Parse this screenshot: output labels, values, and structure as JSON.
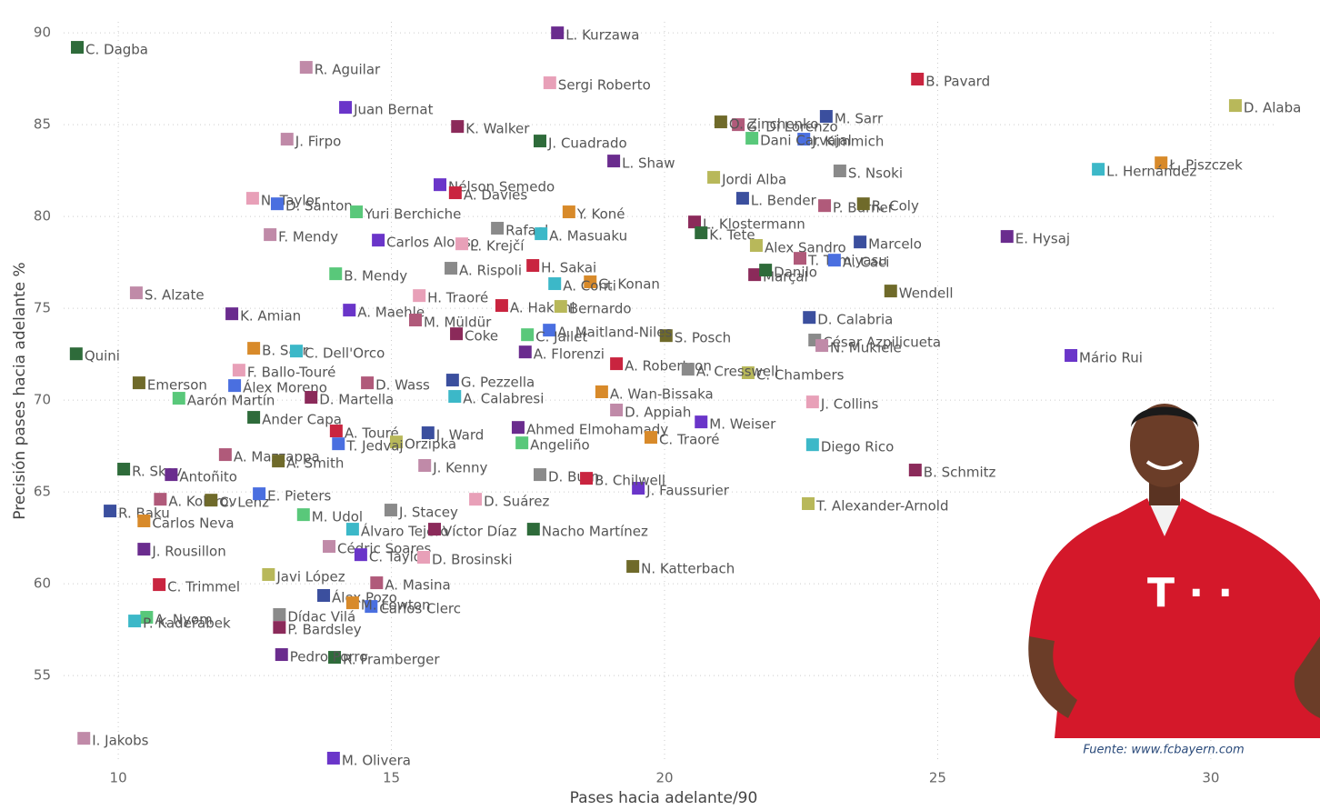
{
  "chart_data": {
    "type": "scatter",
    "xlabel": "Pases hacia adelante/90",
    "ylabel": "Precisión pases hacia adelante %",
    "source": "Fuente: www.fcbayern.com",
    "xlim": [
      9,
      31.2
    ],
    "ylim": [
      50.3,
      90.6
    ],
    "xticks": [
      10,
      15,
      20,
      25,
      30
    ],
    "yticks": [
      55,
      60,
      65,
      70,
      75,
      80,
      85,
      90
    ],
    "grid": true,
    "palette": [
      "#2e6b3a",
      "#6a2c8e",
      "#c08aa8",
      "#6a35c9",
      "#e8a0b8",
      "#c9243f",
      "#b8b85a",
      "#3b4f9e",
      "#b05a7a",
      "#6f6a2a",
      "#4a6fe0",
      "#59c87a",
      "#8a8a8a",
      "#d88a2a",
      "#3cb8c8",
      "#8b2a5a"
    ],
    "labels": [
      "C. Dagba",
      "L. Kurzawa",
      "R. Aguilar",
      "Juan Bernat",
      "Sergi Roberto",
      "B. Pavard",
      "D. Alaba",
      "M. Sarr",
      "G. Di Lorenzo",
      "O. Zinchenko",
      "J. Kimmich",
      "Dani Carvajal",
      "S. Nsoki",
      "Ł. Piszczek",
      "L. Hernández",
      "K. Walker",
      "J. Cuadrado",
      "L. Shaw",
      "J. Firpo",
      "Nélson Semedo",
      "N. Taylor",
      "A. Davies",
      "Jordi Alba",
      "L. Bender",
      "P. Burner",
      "R. Coly",
      "D. Santon",
      "Yuri Berchiche",
      "Rafael",
      "Y. Koné",
      "A. Masuaku",
      "L. Klostermann",
      "K. Tete",
      "E. Hysaj",
      "F. Mendy",
      "Carlos Alonso",
      "L. Krejčí",
      "H. Sakai",
      "Alex Sandro",
      "Marcelo",
      "T. Tomiyasu",
      "Wendell",
      "A. Caci",
      "B. Mendy",
      "A. Rispoli",
      "G. Konan",
      "A. Conti",
      "Marçal",
      "Danilo",
      "K. Amian",
      "S. Alzate",
      "A. Maehle",
      "H. Traoré",
      "A. Hakimi",
      "Bernardo",
      "D. Calabria",
      "M. Müldür",
      "S. Posch",
      "A. Maitland-Niles",
      "C. Jallet",
      "César Azpilicueta",
      "B. Sarr",
      "C. Dell'Orco",
      "Coke",
      "Quini",
      "A. Florenzi",
      "N. Mukiele",
      "Mário Rui",
      "F. Ballo-Touré",
      "A. Robertson",
      "C. Chambers",
      "G. Pezzella",
      "D. Wass",
      "Emerson",
      "Álex Moreno",
      "Aarón Martín",
      "A. Cresswell",
      "A. Wan-Bissaka",
      "A. Calabresi",
      "D. Martella",
      "Ander Capa",
      "Ahmed Elmohamady",
      "D. Appiah",
      "M. Weiser",
      "J. Collins",
      "A. Touré",
      "Orzipka",
      "J. Ward",
      "A. Mazzappa",
      "A. Smith",
      "T. Jedvaj",
      "Angeliño",
      "D. Burn",
      "C. Traoré",
      "Diego Rico",
      "B. Schmitz",
      "R. Skov",
      "Antoñito",
      "J. Kenny",
      "J. Faussurier",
      "D. Suárez",
      "B. Chilwell",
      "T. Alexander-Arnold",
      "R. Baku",
      "A. Kolarov",
      "C. Lenz",
      "E. Pieters",
      "M. Udol",
      "J. Stacey",
      "Carlos Neva",
      "Álvaro Tejero",
      "Víctor Díaz",
      "Nacho Martínez",
      "J. Rousillon",
      "Cédric Soares",
      "C. Taylor",
      "D. Brosinski",
      "C. Trimmel",
      "Javi López",
      "Álex Pozo",
      "A. Masina",
      "N. Katterbach",
      "Carlos Clerc",
      "A. Nyom",
      "Dídac Vilá",
      "M. Lowton",
      "P. Kadeřábek",
      "P. Bardsley",
      "R. Framberger",
      "Pedro Porro",
      "I. Jakobs",
      "M. Olivera"
    ],
    "x": [
      9.25,
      18.04,
      13.44,
      14.16,
      17.9,
      24.63,
      30.45,
      22.96,
      21.35,
      21.03,
      22.55,
      21.6,
      23.21,
      29.09,
      27.94,
      16.21,
      17.72,
      19.07,
      13.09,
      15.89,
      12.46,
      16.17,
      20.9,
      21.43,
      22.93,
      23.64,
      12.91,
      14.36,
      16.94,
      18.25,
      17.74,
      20.55,
      20.67,
      26.27,
      12.78,
      14.76,
      16.29,
      17.59,
      21.68,
      23.58,
      22.48,
      24.14,
      23.11,
      13.98,
      16.09,
      18.64,
      17.99,
      21.65,
      21.85,
      12.08,
      10.33,
      14.23,
      15.51,
      17.02,
      18.1,
      22.65,
      15.44,
      20.03,
      17.89,
      17.49,
      22.75,
      12.48,
      13.26,
      16.19,
      9.23,
      17.45,
      22.88,
      27.44,
      12.21,
      19.12,
      21.53,
      16.12,
      14.56,
      10.38,
      12.13,
      11.11,
      20.43,
      18.85,
      16.16,
      13.53,
      12.48,
      17.32,
      19.12,
      20.67,
      22.71,
      13.99,
      15.09,
      15.67,
      11.96,
      12.93,
      14.03,
      17.39,
      17.72,
      19.75,
      22.71,
      24.59,
      10.1,
      10.97,
      15.61,
      19.52,
      16.54,
      18.57,
      22.63,
      9.85,
      10.77,
      11.7,
      12.58,
      13.39,
      14.99,
      10.47,
      14.29,
      15.79,
      17.6,
      10.47,
      13.86,
      14.44,
      15.59,
      10.75,
      12.75,
      13.76,
      14.73,
      19.42,
      14.63,
      10.52,
      12.95,
      14.29,
      10.3,
      12.95,
      13.96,
      12.99,
      9.37,
      13.94
    ],
    "values": [
      89.21,
      90.0,
      88.12,
      85.94,
      87.28,
      87.48,
      86.04,
      85.45,
      85.0,
      85.15,
      84.21,
      84.26,
      82.48,
      82.92,
      82.57,
      84.9,
      84.11,
      83.02,
      84.21,
      81.73,
      80.99,
      81.29,
      82.13,
      80.99,
      80.59,
      80.69,
      80.69,
      80.25,
      79.36,
      80.25,
      79.06,
      79.7,
      79.11,
      78.91,
      79.01,
      78.71,
      78.51,
      77.33,
      78.42,
      78.61,
      77.72,
      75.94,
      77.62,
      76.88,
      77.18,
      76.44,
      76.34,
      76.83,
      77.08,
      74.7,
      75.84,
      74.9,
      75.69,
      75.15,
      75.1,
      74.5,
      74.36,
      73.51,
      73.81,
      73.56,
      73.27,
      72.82,
      72.67,
      73.61,
      72.52,
      72.62,
      72.97,
      72.43,
      71.63,
      71.98,
      71.49,
      71.09,
      70.94,
      70.94,
      70.79,
      70.1,
      71.68,
      70.45,
      70.2,
      70.15,
      69.06,
      68.51,
      69.46,
      68.81,
      69.9,
      68.32,
      67.72,
      68.22,
      67.03,
      66.68,
      67.62,
      67.67,
      65.94,
      67.97,
      67.57,
      66.19,
      66.24,
      65.94,
      66.44,
      65.2,
      64.6,
      65.74,
      64.36,
      63.96,
      64.6,
      64.55,
      64.9,
      63.76,
      64.01,
      63.42,
      62.97,
      62.97,
      62.97,
      61.88,
      62.03,
      61.58,
      61.44,
      59.95,
      60.5,
      59.36,
      60.05,
      60.94,
      58.76,
      58.17,
      58.32,
      58.96,
      57.97,
      57.62,
      55.99,
      56.14,
      51.58,
      50.5
    ]
  }
}
